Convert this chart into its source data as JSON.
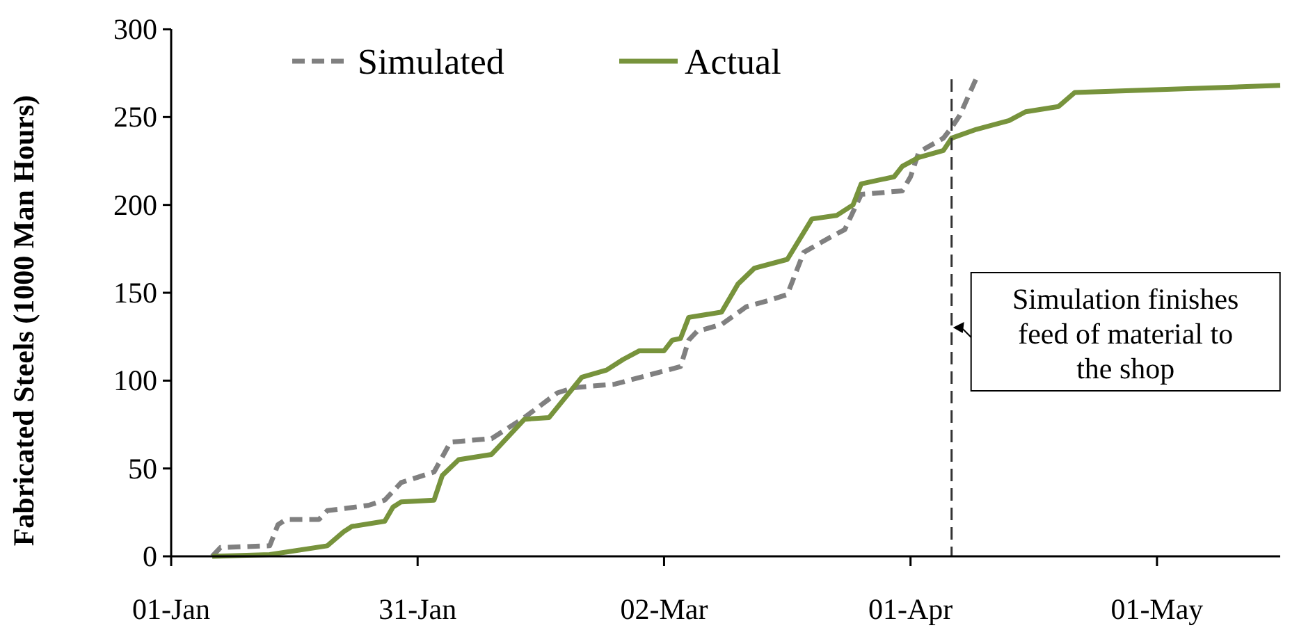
{
  "chart_data": {
    "type": "line",
    "ylabel": "Fabricated Steels (1000 Man Hours)",
    "xlim": [
      "--01-01",
      "--05-16"
    ],
    "ylim": [
      0,
      300
    ],
    "xticks": [
      {
        "value": "--01-01",
        "label": "01-Jan"
      },
      {
        "value": "--01-31",
        "label": "31-Jan"
      },
      {
        "value": "--03-02",
        "label": "02-Mar"
      },
      {
        "value": "--04-01",
        "label": "01-Apr"
      },
      {
        "value": "--05-01",
        "label": "01-May"
      }
    ],
    "yticks": [
      0,
      50,
      100,
      150,
      200,
      250,
      300
    ],
    "grid": false,
    "legend": "top",
    "marker": "none",
    "series": [
      {
        "name": "Simulated",
        "color": "#808080",
        "line_style": "dashed",
        "x": [
          "--01-06",
          "--01-07",
          "--01-13",
          "--01-14",
          "--01-15",
          "--01-19",
          "--01-20",
          "--01-25",
          "--01-27",
          "--01-29",
          "--01-31",
          "--02-02",
          "--02-04",
          "--02-09",
          "--02-13",
          "--02-17",
          "--02-19",
          "--02-24",
          "--02-28",
          "--03-04",
          "--03-05",
          "--03-06",
          "--03-09",
          "--03-12",
          "--03-15",
          "--03-17",
          "--03-18",
          "--03-19",
          "--03-22",
          "--03-24",
          "--03-25",
          "--03-26",
          "--03-31",
          "--04-01",
          "--04-02",
          "--04-05",
          "--04-06",
          "--04-07",
          "--04-09"
        ],
        "values": [
          0,
          5,
          6,
          18,
          21,
          21,
          26,
          29,
          32,
          42,
          45,
          48,
          65,
          67,
          79,
          93,
          96,
          98,
          103,
          108,
          123,
          128,
          132,
          142,
          146,
          149,
          161,
          173,
          181,
          186,
          196,
          206,
          208,
          216,
          230,
          238,
          244,
          251,
          272
        ]
      },
      {
        "name": "Actual",
        "color": "#77933c",
        "line_style": "solid",
        "x": [
          "--01-06",
          "--01-13",
          "--01-20",
          "--01-22",
          "--01-23",
          "--01-27",
          "--01-28",
          "--01-29",
          "--02-02",
          "--02-03",
          "--02-05",
          "--02-09",
          "--02-10",
          "--02-13",
          "--02-16",
          "--02-20",
          "--02-23",
          "--02-25",
          "--02-27",
          "--03-02",
          "--03-03",
          "--03-04",
          "--03-05",
          "--03-09",
          "--03-11",
          "--03-13",
          "--03-17",
          "--03-20",
          "--03-23",
          "--03-25",
          "--03-26",
          "--03-30",
          "--03-31",
          "--04-02",
          "--04-05",
          "--04-06",
          "--04-09",
          "--04-13",
          "--04-15",
          "--04-19",
          "--04-21",
          "--05-16"
        ],
        "values": [
          0,
          1,
          6,
          14,
          17,
          20,
          28,
          31,
          32,
          46,
          55,
          58,
          63,
          78,
          79,
          102,
          106,
          112,
          117,
          117,
          123,
          124,
          136,
          139,
          155,
          164,
          169,
          192,
          194,
          200,
          212,
          216,
          222,
          227,
          231,
          238,
          243,
          248,
          253,
          256,
          264,
          268
        ]
      }
    ],
    "ref_lines": [
      {
        "axis": "x",
        "value": "--04-06",
        "label": "Simulation finishes feed of material to the shop",
        "color": "#333333",
        "line_style": "dashed"
      }
    ]
  }
}
